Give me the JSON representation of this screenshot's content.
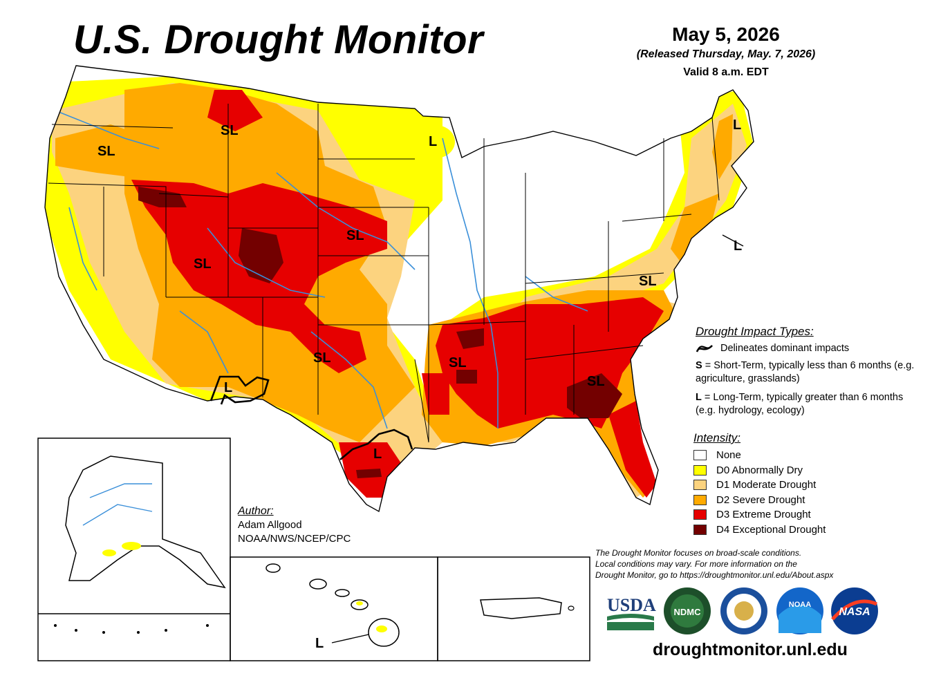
{
  "title": "U.S. Drought Monitor",
  "date": "May 5, 2026",
  "released": "(Released Thursday, May. 7, 2026)",
  "valid": "Valid 8 a.m. EDT",
  "impact_types": {
    "heading": "Drought Impact Types:",
    "delineates": "Delineates dominant impacts",
    "short_key": "S",
    "short_text": " = Short-Term, typically less than 6 months (e.g. agriculture, grasslands)",
    "long_key": "L",
    "long_text": " = Long-Term, typically greater than 6 months (e.g. hydrology, ecology)"
  },
  "intensity": {
    "heading": "Intensity:",
    "items": [
      {
        "label": "None",
        "color": "#ffffff"
      },
      {
        "label": "D0 Abnormally Dry",
        "color": "#ffff00"
      },
      {
        "label": "D1 Moderate Drought",
        "color": "#fcd37f"
      },
      {
        "label": "D2 Severe Drought",
        "color": "#ffaa00"
      },
      {
        "label": "D3 Extreme Drought",
        "color": "#e60000"
      },
      {
        "label": "D4 Exceptional Drought",
        "color": "#730000"
      }
    ]
  },
  "author": {
    "heading": "Author:",
    "name": "Adam Allgood",
    "org": "NOAA/NWS/NCEP/CPC"
  },
  "disclaimer": {
    "line1": "The Drought Monitor focuses on broad-scale conditions.",
    "line2": "Local conditions may vary. For more information on the",
    "line3": "Drought Monitor, go to https://droughtmonitor.unl.edu/About.aspx"
  },
  "map_labels": {
    "sl": "SL",
    "l": "L"
  },
  "logos": {
    "usda": "USDA",
    "ndmc": "NDMC",
    "noaa": "NOAA",
    "nasa": "NASA"
  },
  "url": "droughtmonitor.unl.edu"
}
